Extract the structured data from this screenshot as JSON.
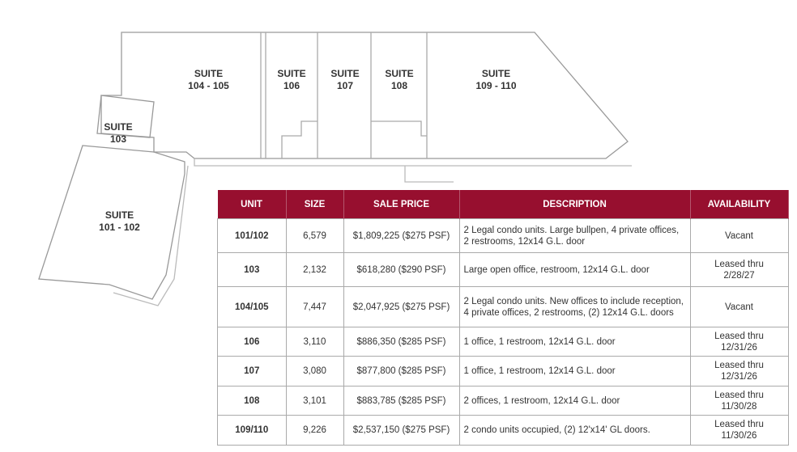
{
  "suites": [
    {
      "id": "s104",
      "label": "SUITE",
      "num": "104 - 105"
    },
    {
      "id": "s106",
      "label": "SUITE",
      "num": "106"
    },
    {
      "id": "s107",
      "label": "SUITE",
      "num": "107"
    },
    {
      "id": "s108",
      "label": "SUITE",
      "num": "108"
    },
    {
      "id": "s109",
      "label": "SUITE",
      "num": "109 - 110"
    },
    {
      "id": "s103",
      "label": "SUITE",
      "num": "103"
    },
    {
      "id": "s101",
      "label": "SUITE",
      "num": "101 - 102"
    }
  ],
  "table": {
    "headers": [
      "UNIT",
      "SIZE",
      "SALE PRICE",
      "DESCRIPTION",
      "AVAILABILITY"
    ],
    "header_color": "#970f2f",
    "rows": [
      {
        "unit": "101/102",
        "size": "6,579",
        "price": "$1,809,225 ($275 PSF)",
        "desc": "2 Legal condo units. Large bullpen, 4 private offices, 2 restrooms, 12x14 G.L. door",
        "avail": "Vacant"
      },
      {
        "unit": "103",
        "size": "2,132",
        "price": "$618,280 ($290 PSF)",
        "desc": "Large open office, restroom, 12x14 G.L. door",
        "avail": "Leased thru 2/28/27"
      },
      {
        "unit": "104/105",
        "size": "7,447",
        "price": "$2,047,925 ($275 PSF)",
        "desc": "2 Legal condo units. New offices to include reception, 4 private offices, 2 restrooms, (2) 12x14 G.L. doors",
        "avail": "Vacant"
      },
      {
        "unit": "106",
        "size": "3,110",
        "price": "$886,350 ($285 PSF)",
        "desc": "1 office, 1 restroom, 12x14 G.L. door",
        "avail": "Leased thru 12/31/26"
      },
      {
        "unit": "107",
        "size": "3,080",
        "price": "$877,800 ($285 PSF)",
        "desc": "1 office, 1 restroom, 12x14 G.L. door",
        "avail": "Leased thru 12/31/26"
      },
      {
        "unit": "108",
        "size": "3,101",
        "price": "$883,785 ($285 PSF)",
        "desc": "2 offices, 1 restroom, 12x14 G.L. door",
        "avail": "Leased thru 11/30/28"
      },
      {
        "unit": "109/110",
        "size": "9,226",
        "price": "$2,537,150 ($275 PSF)",
        "desc": "2 condo units occupied, (2) 12'x14' GL doors.",
        "avail": "Leased thru 11/30/26"
      }
    ]
  }
}
